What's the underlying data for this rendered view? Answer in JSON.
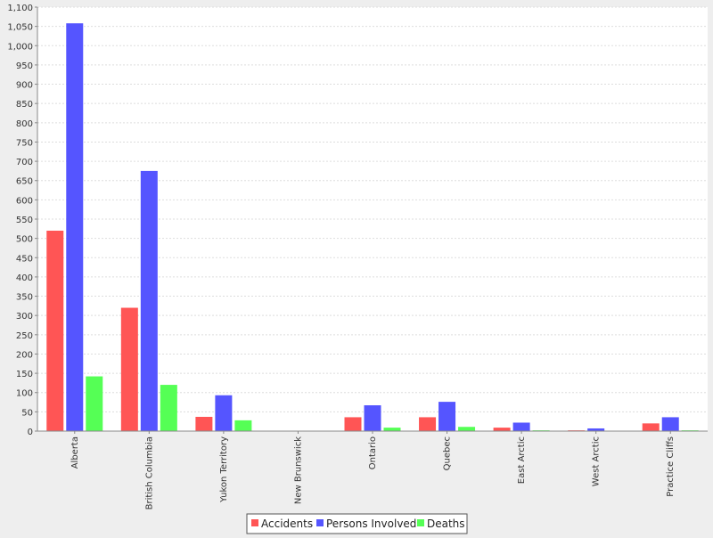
{
  "chart_data": {
    "type": "bar",
    "title": "",
    "xlabel": "",
    "ylabel": "",
    "categories": [
      "Alberta",
      "British Columbia",
      "Yukon Territory",
      "New Brunswick",
      "Ontario",
      "Quebec",
      "East Arctic",
      "West Arctic",
      "Practice Cliffs"
    ],
    "series": [
      {
        "name": "Accidents",
        "color": "#ff5555",
        "values": [
          520,
          320,
          37,
          1,
          36,
          36,
          9,
          2,
          20
        ]
      },
      {
        "name": "Persons Involved",
        "color": "#5555ff",
        "values": [
          1058,
          675,
          93,
          1,
          67,
          76,
          22,
          7,
          36
        ]
      },
      {
        "name": "Deaths",
        "color": "#55ff55",
        "values": [
          142,
          120,
          28,
          0,
          9,
          11,
          2,
          1,
          2
        ]
      }
    ],
    "ylim": [
      0,
      1100
    ],
    "ytick_step": 50,
    "ytick_labels": [
      "0",
      "50",
      "100",
      "150",
      "200",
      "250",
      "300",
      "350",
      "400",
      "450",
      "500",
      "550",
      "600",
      "650",
      "700",
      "750",
      "800",
      "850",
      "900",
      "950",
      "1,000",
      "1,050",
      "1,100"
    ],
    "grid": true,
    "legend_position": "bottom"
  }
}
